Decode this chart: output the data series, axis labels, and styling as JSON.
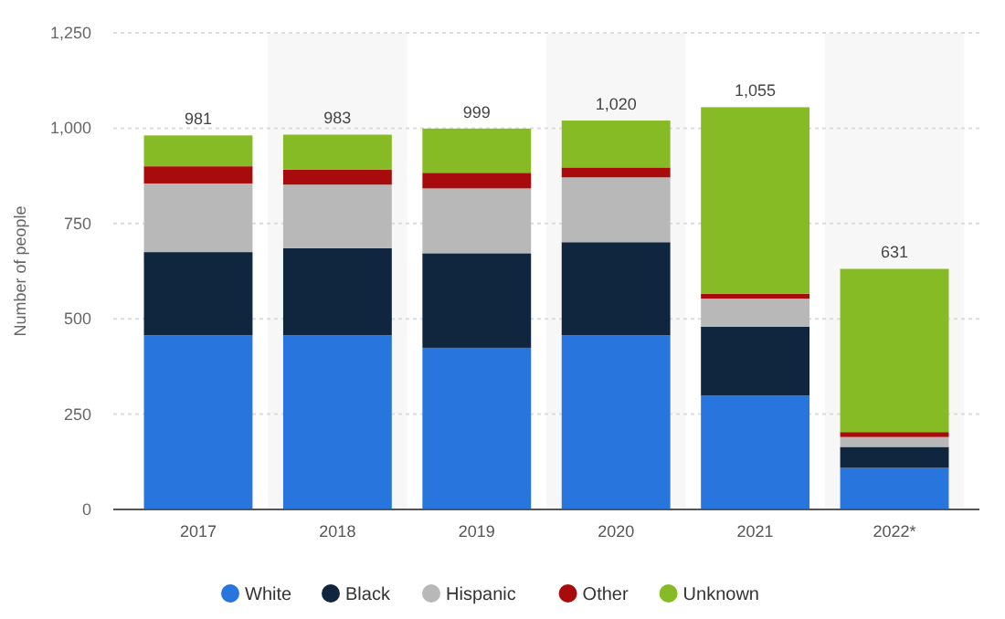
{
  "chart_data": {
    "type": "bar",
    "stacked": true,
    "ylabel": "Number of people",
    "categories": [
      "2017",
      "2018",
      "2019",
      "2020",
      "2021",
      "2022*"
    ],
    "series": [
      {
        "name": "White",
        "color": "#2876dd",
        "values": [
          457,
          457,
          424,
          457,
          299,
          109
        ]
      },
      {
        "name": "Black",
        "color": "#10263e",
        "values": [
          218,
          228,
          248,
          244,
          180,
          55
        ]
      },
      {
        "name": "Hispanic",
        "color": "#b8b8b8",
        "values": [
          180,
          167,
          170,
          170,
          74,
          26
        ]
      },
      {
        "name": "Other",
        "color": "#a80b0b",
        "values": [
          45,
          39,
          41,
          26,
          13,
          13
        ]
      },
      {
        "name": "Unknown",
        "color": "#86bb25",
        "values": [
          81,
          92,
          116,
          123,
          489,
          428
        ]
      }
    ],
    "totals": [
      "981",
      "983",
      "999",
      "1,020",
      "1,055",
      "631"
    ],
    "ylim": [
      0,
      1250
    ],
    "yticks": [
      0,
      {
        "value": 250,
        "label": "250"
      },
      {
        "value": 500,
        "label": "500"
      },
      {
        "value": 750,
        "label": "750"
      },
      {
        "value": 1000,
        "label": "1,000"
      },
      {
        "value": 1250,
        "label": "1,250"
      }
    ],
    "grid": "y",
    "legend": "bottom"
  }
}
